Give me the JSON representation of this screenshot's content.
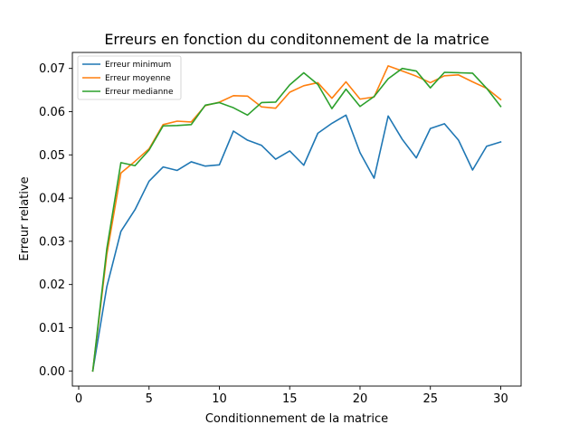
{
  "chart_data": {
    "type": "line",
    "title": "Erreurs en fonction du conditonnement de la matrice",
    "xlabel": "Conditionnement de la matrice",
    "ylabel": "Erreur relative",
    "xlim": [
      -0.45,
      31.45
    ],
    "ylim": [
      -0.0035,
      0.0737
    ],
    "xticks": [
      0,
      5,
      10,
      15,
      20,
      25,
      30
    ],
    "yticks": [
      0.0,
      0.01,
      0.02,
      0.03,
      0.04,
      0.05,
      0.06,
      0.07
    ],
    "ytick_labels": [
      "0.00",
      "0.01",
      "0.02",
      "0.03",
      "0.04",
      "0.05",
      "0.06",
      "0.07"
    ],
    "grid": false,
    "legend_position": "top-left",
    "x": [
      1,
      2,
      3,
      4,
      5,
      6,
      7,
      8,
      9,
      10,
      11,
      12,
      13,
      14,
      15,
      16,
      17,
      18,
      19,
      20,
      21,
      22,
      23,
      24,
      25,
      26,
      27,
      28,
      29,
      30
    ],
    "series": [
      {
        "name": "Erreur minimum",
        "color": "#1f77b4",
        "values": [
          0.0,
          0.0195,
          0.0323,
          0.0373,
          0.0439,
          0.0472,
          0.0464,
          0.0484,
          0.0474,
          0.0477,
          0.0555,
          0.0534,
          0.0522,
          0.049,
          0.0509,
          0.0476,
          0.055,
          0.0573,
          0.0592,
          0.0505,
          0.0446,
          0.059,
          0.0536,
          0.0493,
          0.0561,
          0.0572,
          0.0534,
          0.0465,
          0.052,
          0.053
        ]
      },
      {
        "name": "Erreur moyenne",
        "color": "#ff7f0e",
        "values": [
          0.0,
          0.027,
          0.0458,
          0.0485,
          0.0514,
          0.057,
          0.0578,
          0.0576,
          0.0614,
          0.0622,
          0.0637,
          0.0636,
          0.0611,
          0.0608,
          0.0645,
          0.066,
          0.0667,
          0.0631,
          0.0669,
          0.0629,
          0.0634,
          0.0706,
          0.0694,
          0.0682,
          0.0667,
          0.0683,
          0.0685,
          0.0669,
          0.0654,
          0.0628
        ]
      },
      {
        "name": "Erreur medianne",
        "color": "#2ca02c",
        "values": [
          0.0,
          0.0283,
          0.0482,
          0.0475,
          0.0511,
          0.0567,
          0.0568,
          0.057,
          0.0615,
          0.0621,
          0.0609,
          0.0592,
          0.0621,
          0.0622,
          0.0662,
          0.069,
          0.0663,
          0.0607,
          0.0652,
          0.0612,
          0.0635,
          0.0676,
          0.07,
          0.0694,
          0.0655,
          0.0691,
          0.069,
          0.0689,
          0.0654,
          0.0612
        ]
      }
    ]
  }
}
